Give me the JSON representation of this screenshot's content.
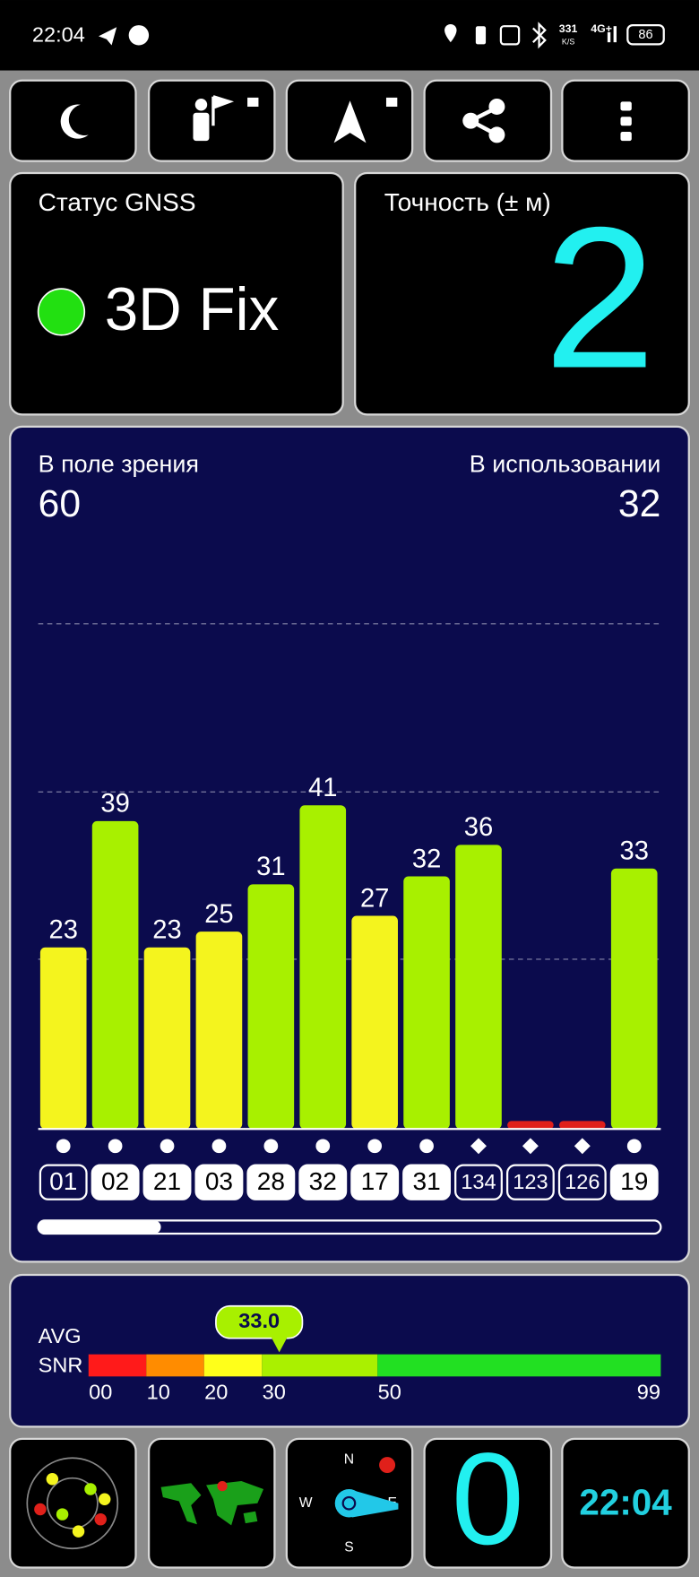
{
  "status_bar": {
    "time": "22:04",
    "speed": "331",
    "speed_unit": "K/S",
    "network": "4G+",
    "battery": "86"
  },
  "gnss_status": {
    "label": "Статус GNSS",
    "value": "3D Fix",
    "indicator_color": "#22e011"
  },
  "accuracy": {
    "label": "Точность (± м)",
    "value": 2
  },
  "satellites": {
    "in_view_label": "В поле зрения",
    "in_view": 60,
    "in_use_label": "В использовании",
    "in_use": 32
  },
  "chart_data": {
    "type": "bar",
    "categories": [
      "01",
      "02",
      "21",
      "03",
      "28",
      "32",
      "17",
      "31",
      "134",
      "123",
      "126",
      "19"
    ],
    "values": [
      23,
      39,
      23,
      25,
      31,
      41,
      27,
      32,
      36,
      1,
      1,
      33
    ],
    "value_labels": [
      "23",
      "39",
      "23",
      "25",
      "31",
      "41",
      "27",
      "32",
      "36",
      null,
      null,
      "33"
    ],
    "colors": [
      "#f4f41e",
      "#a8f000",
      "#f4f41e",
      "#f4f41e",
      "#a8f000",
      "#a8f000",
      "#f4f41e",
      "#a8f000",
      "#a8f000",
      "#e0201a",
      "#e0201a",
      "#a8f000"
    ],
    "markers": [
      "circle",
      "circle",
      "circle",
      "circle",
      "circle",
      "circle",
      "circle",
      "circle",
      "diamond",
      "diamond",
      "diamond",
      "circle"
    ],
    "used": [
      false,
      true,
      true,
      true,
      true,
      true,
      true,
      true,
      false,
      false,
      false,
      true
    ],
    "ylim": [
      0,
      64
    ],
    "grid_values": [
      21.5,
      42.7,
      64
    ]
  },
  "snr_scale": {
    "label_top": "AVG",
    "label_bottom": "SNR",
    "avg": {
      "value": 33.0,
      "label": "33.0"
    },
    "ticks": [
      {
        "value": 0,
        "label": "00"
      },
      10,
      20,
      30,
      50,
      99
    ],
    "colors": [
      "#ff1a1a",
      "#ff8c00",
      "#ffff1a",
      "#aaf000",
      "#22e022"
    ]
  },
  "tiles": {
    "compass": [
      "N",
      "W",
      "E",
      "S"
    ],
    "counter": 0,
    "clock": "22:04"
  }
}
